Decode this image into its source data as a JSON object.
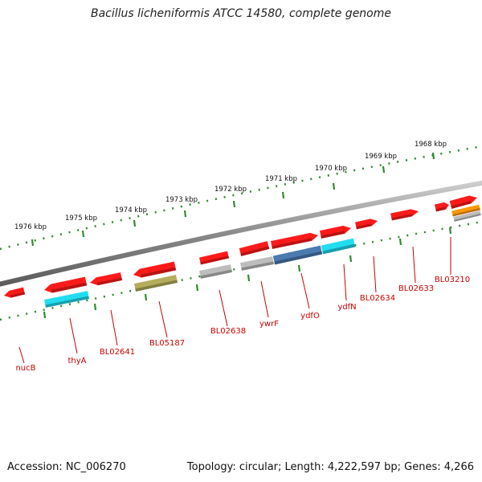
{
  "title": "Bacillus licheniformis ATCC 14580, complete genome",
  "accession": "Accession: NC_006270",
  "topology": "Topology: circular; Length: 4,222,597 bp; Genes: 4,266",
  "colors": {
    "backbone": "#8a8a8a",
    "ruler": "#2e8b2e",
    "gene_red": "#ff1a1a",
    "gene_cyan": "#22ddf0",
    "gene_steel": "#4a7ab0",
    "gene_olive": "#b4ad5c",
    "gene_grey": "#bdbdbd",
    "gene_orange": "#ff9a00",
    "label_red": "#cc0000"
  },
  "ruler_ticks": [
    "1976 kbp",
    "1975 kbp",
    "1974 kbp",
    "1973 kbp",
    "1972 kbp",
    "1971 kbp",
    "1970 kbp",
    "1969 kbp",
    "1968 kbp"
  ],
  "gene_labels": [
    "nucB",
    "thyA",
    "BL02641",
    "BL05187",
    "BL02638",
    "ywrF",
    "ydfO",
    "ydfN",
    "BL02634",
    "BL02633",
    "BL03210"
  ]
}
